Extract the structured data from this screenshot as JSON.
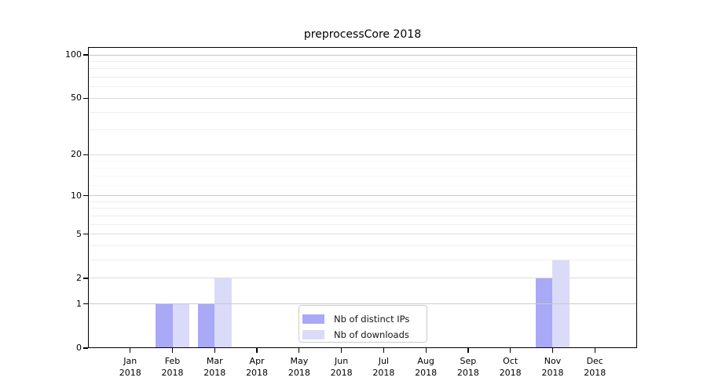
{
  "chart_data": {
    "type": "bar",
    "title": "preprocessCore 2018",
    "categories": [
      "Jan 2018",
      "Feb 2018",
      "Mar 2018",
      "Apr 2018",
      "May 2018",
      "Jun 2018",
      "Jul 2018",
      "Aug 2018",
      "Sep 2018",
      "Oct 2018",
      "Nov 2018",
      "Dec 2018"
    ],
    "series": [
      {
        "name": "Nb of distinct IPs",
        "color": "#a9a9f7",
        "values": [
          0,
          1,
          1,
          0,
          0,
          0,
          0,
          0,
          0,
          0,
          2,
          0
        ]
      },
      {
        "name": "Nb of downloads",
        "color": "#dadaf9",
        "values": [
          0,
          1,
          2,
          0,
          0,
          0,
          0,
          0,
          0,
          0,
          3,
          0
        ]
      }
    ],
    "xlabel": "",
    "ylabel": "",
    "yscale": "log10(1+value)",
    "ylim": [
      0,
      113
    ],
    "yticks": [
      {
        "value": 0,
        "label": "0"
      },
      {
        "value": 1,
        "label": "1"
      },
      {
        "value": 2,
        "label": "2"
      },
      {
        "value": 5,
        "label": "5"
      },
      {
        "value": 10,
        "label": "10"
      },
      {
        "value": 20,
        "label": "20"
      },
      {
        "value": 50,
        "label": "50"
      },
      {
        "value": 100,
        "label": "100"
      }
    ],
    "grid": "horizontal",
    "grid_mid_values": [
      2,
      5,
      20,
      50
    ],
    "grid_major_values": [
      1,
      10,
      100
    ],
    "grid_minor_values": [
      3,
      4,
      6,
      7,
      8,
      9,
      30,
      40,
      60,
      70,
      80,
      90
    ],
    "grid_faint_values": [
      12,
      14,
      16,
      18
    ],
    "legend_position": "bottom-center-inside",
    "colors": {
      "grid_major": "#c9c9c9",
      "grid_mid": "#dcdcdc",
      "grid_minor": "#eeeeee",
      "grid_faint": "#f7f7f7",
      "axis": "#000000",
      "text": "#000000",
      "background": "#ffffff"
    }
  }
}
